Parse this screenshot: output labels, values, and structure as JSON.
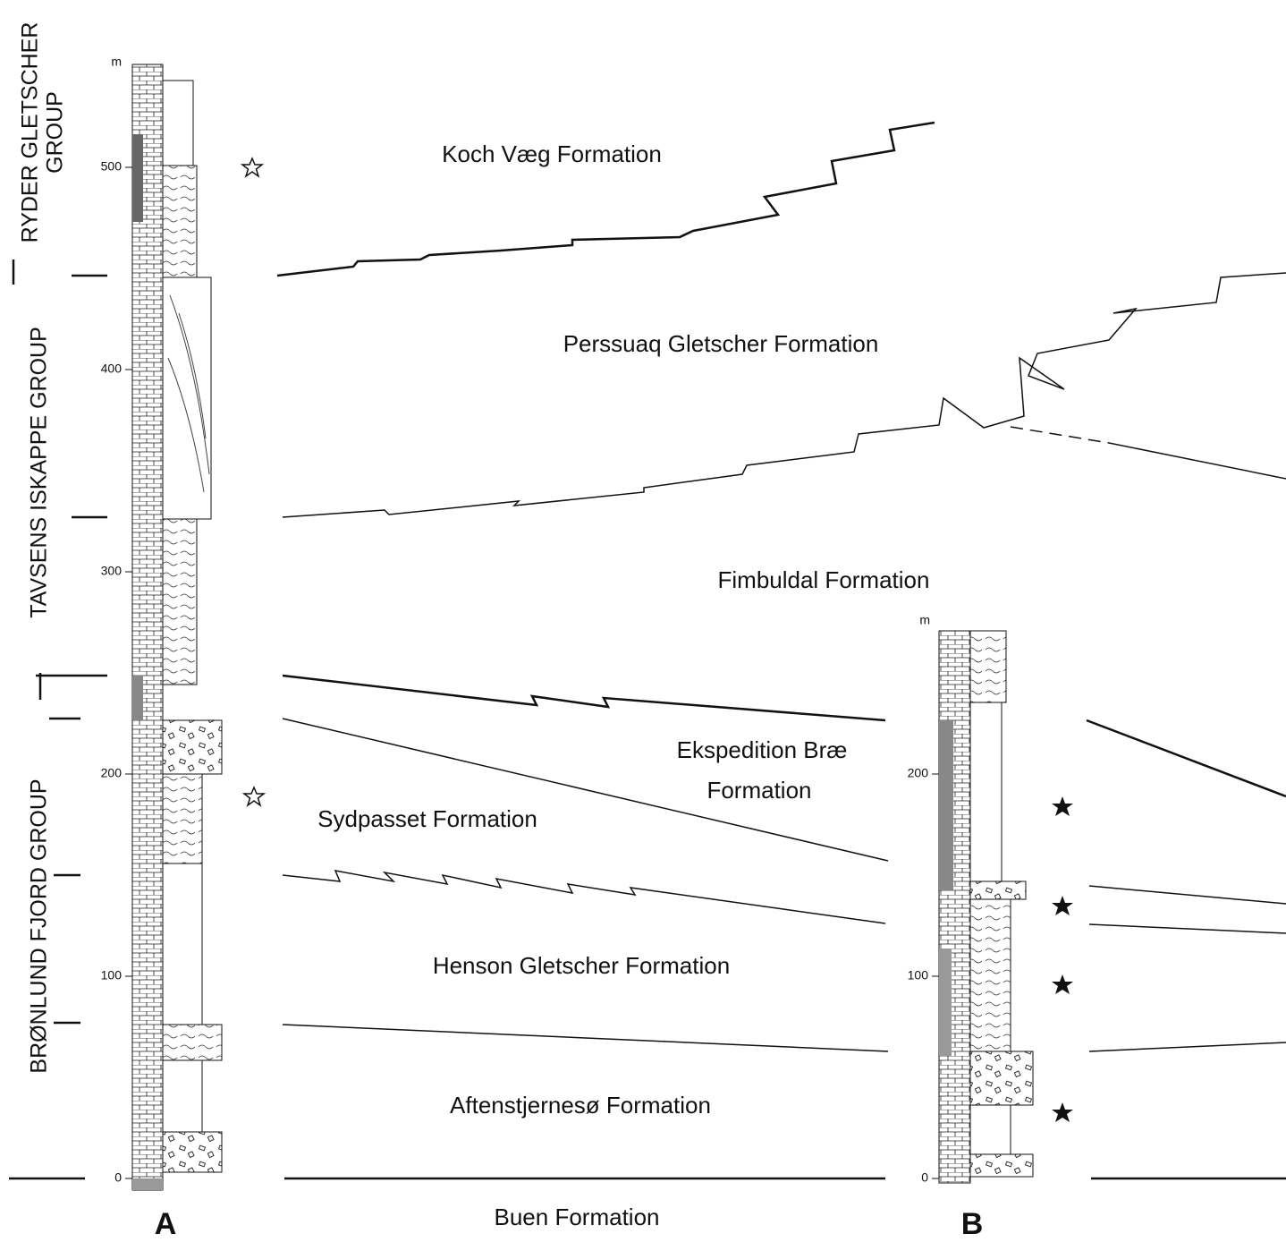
{
  "columns": [
    {
      "label": "A",
      "unit": "m",
      "ticks": [
        "0",
        "100",
        "200",
        "300",
        "400",
        "500"
      ]
    },
    {
      "label": "B",
      "unit": "m",
      "ticks": [
        "0",
        "100",
        "200"
      ]
    }
  ],
  "groups": [
    {
      "lines": [
        "RYDER GLETSCHER",
        "GROUP"
      ]
    },
    {
      "lines": [
        "TAVSENS ISKAPPE GROUP"
      ]
    },
    {
      "lines": [
        "BRØNLUND FJORD GROUP"
      ]
    }
  ],
  "formations": [
    {
      "lines": [
        "Koch Væg Formation"
      ]
    },
    {
      "lines": [
        "Perssuaq Gletscher Formation"
      ]
    },
    {
      "lines": [
        "Fimbuldal Formation"
      ]
    },
    {
      "lines": [
        "Ekspedition Bræ",
        "Formation"
      ]
    },
    {
      "lines": [
        "Sydpasset Formation"
      ]
    },
    {
      "lines": [
        "Henson Gletscher Formation"
      ]
    },
    {
      "lines": [
        "Aftenstjernesø Formation"
      ]
    },
    {
      "lines": [
        "Buen Formation"
      ]
    }
  ]
}
